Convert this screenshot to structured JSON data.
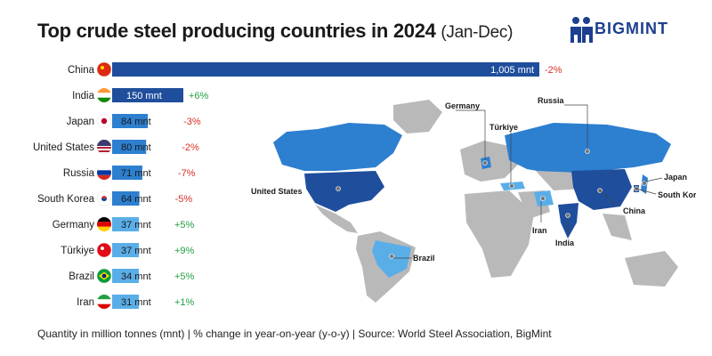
{
  "title": "Top crude steel producing countries in 2024",
  "subtitle": "(Jan-Dec)",
  "brand": "BIGMINT",
  "footer": "Quantity in million tonnes (mnt) | % change in year-on-year (y-o-y) | Source: World Steel Association, BigMint",
  "colors": {
    "bar_dark": "#1f4e9c",
    "bar_mid": "#2d7fd0",
    "bar_light": "#5aaee8",
    "negative": "#d93025",
    "positive": "#22a045",
    "land": "#b9b9b9"
  },
  "chart_data": {
    "type": "bar",
    "orientation": "horizontal",
    "unit": "mnt",
    "categories": [
      "China",
      "India",
      "Japan",
      "United States",
      "Russia",
      "South Korea",
      "Germany",
      "Türkiye",
      "Brazil",
      "Iran"
    ],
    "values": [
      1005,
      150,
      84,
      80,
      71,
      64,
      37,
      37,
      34,
      31
    ],
    "value_labels": [
      "1,005 mnt",
      "150 mnt",
      "84 mnt",
      "80 mnt",
      "71 mnt",
      "64 mnt",
      "37 mnt",
      "37 mnt",
      "34 mnt",
      "31 mnt"
    ],
    "yoy_labels": [
      "-2%",
      "+6%",
      "-3%",
      "-2%",
      "-7%",
      "-5%",
      "+5%",
      "+9%",
      "+5%",
      "+1%"
    ],
    "yoy": [
      -2,
      6,
      -3,
      -2,
      -7,
      -5,
      5,
      9,
      5,
      1
    ],
    "flags": [
      "china-flag",
      "india-flag",
      "japan-flag",
      "united-states-flag",
      "russia-flag",
      "south-korea-flag",
      "germany-flag",
      "turkiye-flag",
      "brazil-flag",
      "iran-flag"
    ]
  },
  "map": {
    "labels": {
      "united_states": "United States",
      "germany": "Germany",
      "russia": "Russia",
      "turkiye": "Türkiye",
      "japan": "Japan",
      "south_korea": "South Korea",
      "china": "China",
      "iran": "Iran",
      "india": "India",
      "brazil": "Brazil"
    }
  }
}
